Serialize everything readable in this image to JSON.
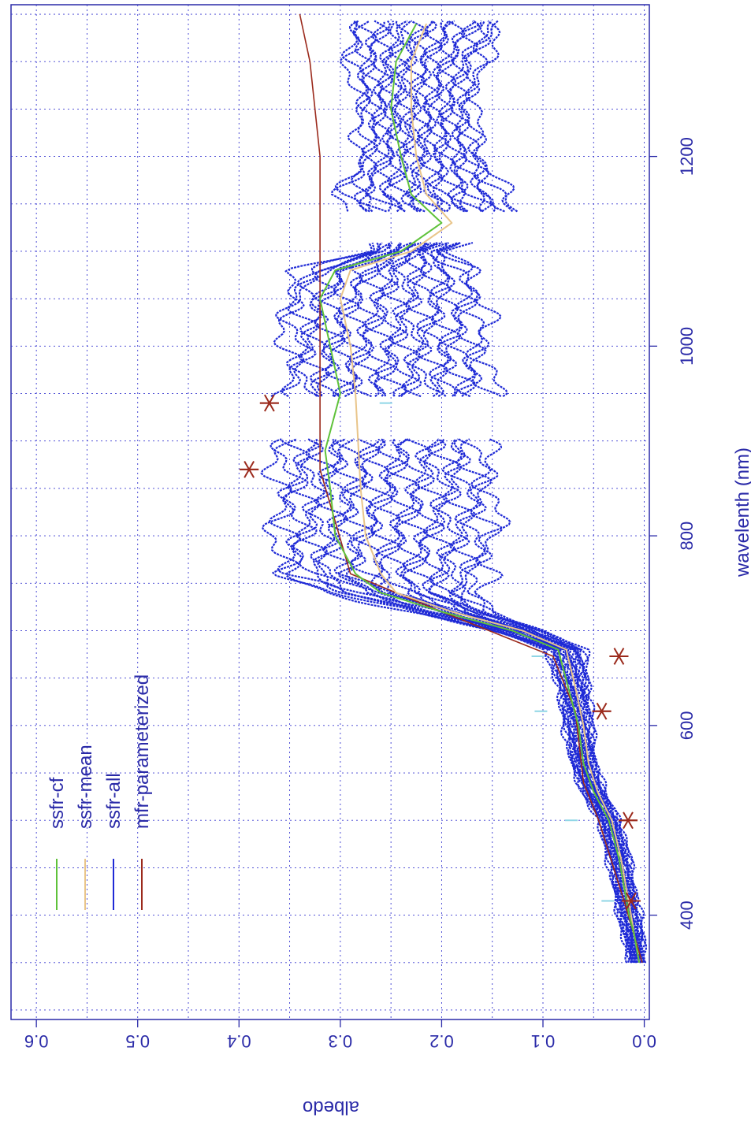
{
  "chart_data": {
    "type": "line",
    "xlabel": "wavelenth (nm)",
    "ylabel": "albedo",
    "xlim": [
      290,
      1360
    ],
    "ylim": [
      -0.005,
      0.625
    ],
    "x_ticks": [
      400,
      600,
      800,
      1000,
      1200
    ],
    "y_ticks": [
      0.0,
      0.1,
      0.2,
      0.3,
      0.4,
      0.5,
      0.6
    ],
    "y_tick_labels": [
      "0.0",
      "0.1",
      "0.2",
      "0.3",
      "0.4",
      "0.5",
      "0.6"
    ],
    "grid": true,
    "legend_position": "top-left",
    "colors": {
      "ssfr_cf": "#5fc23a",
      "ssfr_mean": "#e9c58a",
      "ssfr_all": "#1f2ad6",
      "mfr_parameterized": "#9b2a1c",
      "axis": "#2a2aa8",
      "grid": "#3a3ad0",
      "cyan_markers": "#8fd6e6"
    },
    "series": [
      {
        "name": "ssfr-cf",
        "x": [
          350,
          380,
          400,
          430,
          460,
          500,
          530,
          560,
          600,
          640,
          680,
          700,
          720,
          740,
          760,
          800,
          850,
          890,
          950,
          1000,
          1050,
          1080,
          1100,
          1130,
          1160,
          1200,
          1250,
          1300,
          1340
        ],
        "y": [
          0.005,
          0.01,
          0.015,
          0.02,
          0.025,
          0.035,
          0.05,
          0.06,
          0.065,
          0.075,
          0.085,
          0.13,
          0.2,
          0.26,
          0.285,
          0.305,
          0.31,
          0.315,
          0.3,
          0.31,
          0.32,
          0.305,
          0.24,
          0.2,
          0.23,
          0.24,
          0.25,
          0.245,
          0.225
        ]
      },
      {
        "name": "ssfr-mean",
        "x": [
          350,
          380,
          400,
          430,
          460,
          500,
          530,
          560,
          600,
          640,
          680,
          700,
          720,
          740,
          760,
          800,
          850,
          890,
          950,
          1000,
          1050,
          1080,
          1100,
          1130,
          1160,
          1200,
          1250,
          1300,
          1340
        ],
        "y": [
          0.005,
          0.01,
          0.013,
          0.018,
          0.023,
          0.032,
          0.046,
          0.055,
          0.06,
          0.068,
          0.077,
          0.12,
          0.19,
          0.245,
          0.26,
          0.275,
          0.28,
          0.282,
          0.285,
          0.29,
          0.3,
          0.29,
          0.23,
          0.19,
          0.215,
          0.225,
          0.23,
          0.23,
          0.215
        ]
      },
      {
        "name": "ssfr-all",
        "x": [
          350,
          380,
          400,
          430,
          460,
          500,
          530,
          560,
          600,
          640,
          680,
          700,
          720,
          740,
          760,
          800,
          850,
          890,
          950,
          1000,
          1050,
          1080,
          1100,
          1130,
          1160,
          1200,
          1250,
          1300,
          1340
        ],
        "y_min": [
          0.0,
          0.002,
          0.005,
          0.01,
          0.015,
          0.025,
          0.04,
          0.048,
          0.052,
          0.055,
          0.06,
          0.1,
          0.15,
          0.17,
          0.155,
          0.15,
          0.15,
          0.16,
          0.15,
          0.16,
          0.16,
          0.17,
          0.2,
          0.12,
          0.14,
          0.16,
          0.17,
          0.16,
          0.14
        ],
        "y_max": [
          0.015,
          0.02,
          0.025,
          0.03,
          0.035,
          0.045,
          0.06,
          0.072,
          0.078,
          0.085,
          0.095,
          0.15,
          0.23,
          0.31,
          0.36,
          0.36,
          0.36,
          0.36,
          0.35,
          0.35,
          0.355,
          0.34,
          0.27,
          0.27,
          0.3,
          0.28,
          0.28,
          0.29,
          0.29
        ]
      },
      {
        "name": "mfr-parameterized",
        "x": [
          350,
          415,
          500,
          540,
          615,
          673,
          720,
          760,
          870,
          940,
          1000,
          1100,
          1200,
          1300,
          1350
        ],
        "y": [
          0.002,
          0.02,
          0.045,
          0.06,
          0.068,
          0.09,
          0.2,
          0.29,
          0.32,
          0.32,
          0.32,
          0.32,
          0.32,
          0.33,
          0.34
        ]
      }
    ],
    "mfr_markers": {
      "x": [
        415,
        500,
        615,
        673,
        870,
        940
      ],
      "y": [
        0.013,
        0.016,
        0.042,
        0.025,
        0.39,
        0.37
      ]
    },
    "cyan_markers": {
      "x": [
        415,
        500,
        615,
        673,
        940
      ],
      "y": [
        0.036,
        0.072,
        0.102,
        0.105,
        0.255
      ]
    },
    "legend": [
      "ssfr-cf",
      "ssfr-mean",
      "ssfr-all",
      "mfr-parameterized"
    ]
  }
}
